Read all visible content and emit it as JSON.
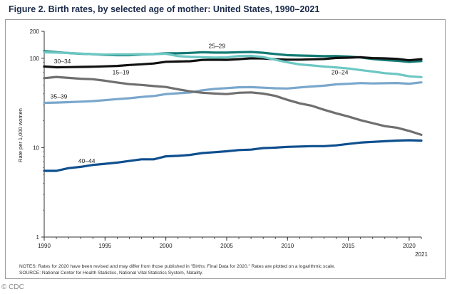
{
  "page": {
    "credit": "© CDC"
  },
  "chart_data": {
    "type": "line",
    "title": "Figure 2. Birth rates, by selected age of mother: United States, 1990–2021",
    "ylabel": "Rate per 1,000 women",
    "xlabel": "",
    "yscale": "log",
    "ylim": [
      1,
      200
    ],
    "yticks": [
      1,
      10,
      100,
      200
    ],
    "xlim": [
      1990,
      2021
    ],
    "xticks": [
      1990,
      1995,
      2000,
      2005,
      2010,
      2015,
      2020
    ],
    "xtick_extra": "2021",
    "x": [
      1990,
      1991,
      1992,
      1993,
      1994,
      1995,
      1996,
      1997,
      1998,
      1999,
      2000,
      2001,
      2002,
      2003,
      2004,
      2005,
      2006,
      2007,
      2008,
      2009,
      2010,
      2011,
      2012,
      2013,
      2014,
      2015,
      2016,
      2017,
      2018,
      2019,
      2020,
      2021
    ],
    "series": [
      {
        "name": "25–29",
        "color": "#137a74",
        "values": [
          120.2,
          117.2,
          114.4,
          112.2,
          111.0,
          108.8,
          108.2,
          108.3,
          110.2,
          111.2,
          113.5,
          113.4,
          114.7,
          116.6,
          115.5,
          115.5,
          116.7,
          117.5,
          115.1,
          111.5,
          108.3,
          107.2,
          106.5,
          105.5,
          105.8,
          104.3,
          102.1,
          98.0,
          95.3,
          93.7,
          91.1,
          93.0
        ]
      },
      {
        "name": "30–34",
        "color": "#111111",
        "values": [
          80.8,
          79.2,
          79.6,
          79.9,
          80.4,
          81.1,
          82.1,
          84.0,
          85.6,
          87.4,
          91.2,
          91.9,
          92.6,
          95.7,
          96.3,
          95.9,
          97.7,
          99.9,
          99.3,
          97.5,
          96.5,
          96.5,
          97.3,
          98.0,
          100.8,
          101.5,
          102.7,
          100.3,
          99.7,
          98.3,
          94.9,
          97.6
        ]
      },
      {
        "name": "20–24",
        "color": "#6cc7c3",
        "values": [
          116.5,
          115.7,
          114.6,
          112.6,
          111.1,
          109.8,
          110.4,
          110.4,
          111.2,
          111.0,
          112.3,
          105.6,
          103.6,
          102.6,
          101.7,
          102.2,
          105.9,
          106.3,
          103.0,
          96.2,
          90.0,
          85.3,
          83.1,
          80.7,
          79.0,
          76.8,
          73.8,
          71.0,
          68.0,
          66.6,
          62.8,
          61.5
        ]
      },
      {
        "name": "35–39",
        "color": "#7aa7cc",
        "values": [
          31.7,
          31.9,
          32.3,
          32.7,
          33.2,
          34.0,
          34.9,
          35.7,
          36.9,
          37.8,
          39.7,
          40.6,
          41.4,
          43.8,
          45.4,
          46.3,
          47.3,
          47.5,
          46.8,
          46.1,
          45.9,
          47.2,
          48.3,
          49.3,
          51.0,
          51.8,
          52.7,
          52.3,
          52.6,
          52.8,
          51.9,
          53.7
        ]
      },
      {
        "name": "15–19",
        "color": "#6f6f6f",
        "values": [
          59.9,
          61.8,
          60.3,
          59.0,
          58.2,
          56.0,
          53.5,
          51.3,
          50.3,
          48.8,
          47.7,
          45.0,
          42.6,
          41.1,
          40.3,
          39.7,
          41.1,
          41.5,
          40.2,
          37.9,
          34.2,
          31.3,
          29.4,
          26.5,
          24.2,
          22.3,
          20.3,
          18.8,
          17.4,
          16.7,
          15.4,
          13.9
        ]
      },
      {
        "name": "40–44",
        "color": "#0e4f8e",
        "values": [
          5.5,
          5.5,
          5.9,
          6.1,
          6.4,
          6.6,
          6.8,
          7.1,
          7.4,
          7.4,
          8.0,
          8.1,
          8.3,
          8.7,
          8.9,
          9.1,
          9.4,
          9.5,
          9.9,
          10.0,
          10.2,
          10.3,
          10.4,
          10.4,
          10.6,
          11.0,
          11.4,
          11.6,
          11.8,
          12.0,
          12.1,
          12.0
        ]
      }
    ],
    "labels": [
      {
        "series": "25–29",
        "text": "25–29",
        "year": 2004.2,
        "value": 130
      },
      {
        "series": "30–34",
        "text": "30–34",
        "year": 1991.5,
        "value": 88
      },
      {
        "series": "15–19",
        "text": "15–19",
        "year": 1996.3,
        "value": 66
      },
      {
        "series": "20–24",
        "text": "20–24",
        "year": 2014.3,
        "value": 66
      },
      {
        "series": "35–39",
        "text": "35–39",
        "year": 1991.2,
        "value": 35.5
      },
      {
        "series": "40–44",
        "text": "40–44",
        "year": 1993.5,
        "value": 6.7
      }
    ]
  },
  "notes": {
    "line1": "NOTES: Rates for 2020 have been revised and may differ from those published in \"Births: Final Data for 2020.\" Rates are plotted on a logarithmic scale.",
    "line2": "SOURCE: National Center for Health Statistics, National Vital Statistics System, Natality."
  }
}
